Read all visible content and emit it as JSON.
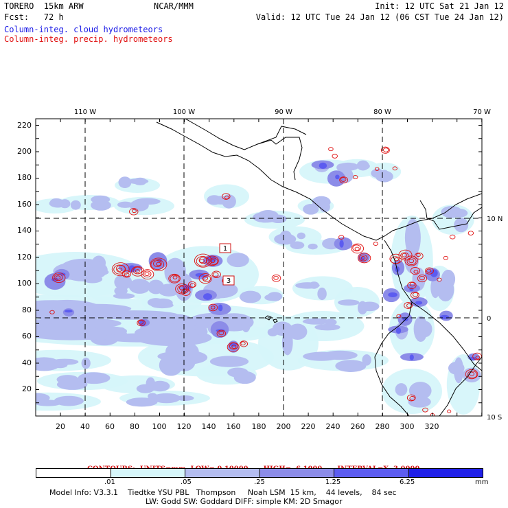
{
  "header": {
    "model_name": "TORERO  15km ARW",
    "forecast": "Fcst:   72 h",
    "org": "NCAR/MMM",
    "init": "Init: 12 UTC Sat 21 Jan 12",
    "valid": "Valid: 12 UTC Tue 24 Jan 12 (06 CST Tue 24 Jan 12)"
  },
  "legend": {
    "cloud_label": "Column-integ. cloud hydrometeors",
    "precip_label": "Column-integ. precip. hydrometeors",
    "cloud_color": "#1a1ae6",
    "precip_color": "#e01010"
  },
  "map": {
    "lon_labels": [
      "110 W",
      "100 W",
      "90 W",
      "80 W",
      "70 W"
    ],
    "lat_labels": [
      "10 N",
      "0",
      "10 S"
    ],
    "y_ticks": [
      "220",
      "200",
      "180",
      "160",
      "140",
      "120",
      "100",
      "80",
      "60",
      "40",
      "20"
    ],
    "x_ticks": [
      "20",
      "40",
      "60",
      "80",
      "100",
      "120",
      "140",
      "160",
      "180",
      "200",
      "220",
      "240",
      "260",
      "280",
      "300",
      "320"
    ],
    "markers": [
      "1",
      "3"
    ],
    "land_color": "#000000",
    "grid_style": "dashed"
  },
  "contours": {
    "units": "CONTOURS:  UNITS=mm  LOW= 0.10000",
    "high": "HIGH=  6.1000",
    "interval": "INTERVAL=X  3.0000"
  },
  "colorbar": {
    "colors": [
      "#ffffff",
      "#d6f6fa",
      "#b4bdf0",
      "#8c8ce8",
      "#5c5cf0",
      "#2020e8"
    ],
    "labels": [
      ".01",
      ".05",
      ".25",
      "1.25",
      "6.25",
      "mm"
    ]
  },
  "model_info": {
    "line1": "Model Info: V3.3.1    Tiedtke YSU PBL   Thompson     Noah LSM  15 km,    44 levels,    84 sec",
    "line2": "LW: Godd SW: Goddard DIFF: simple KM: 2D Smagor"
  }
}
